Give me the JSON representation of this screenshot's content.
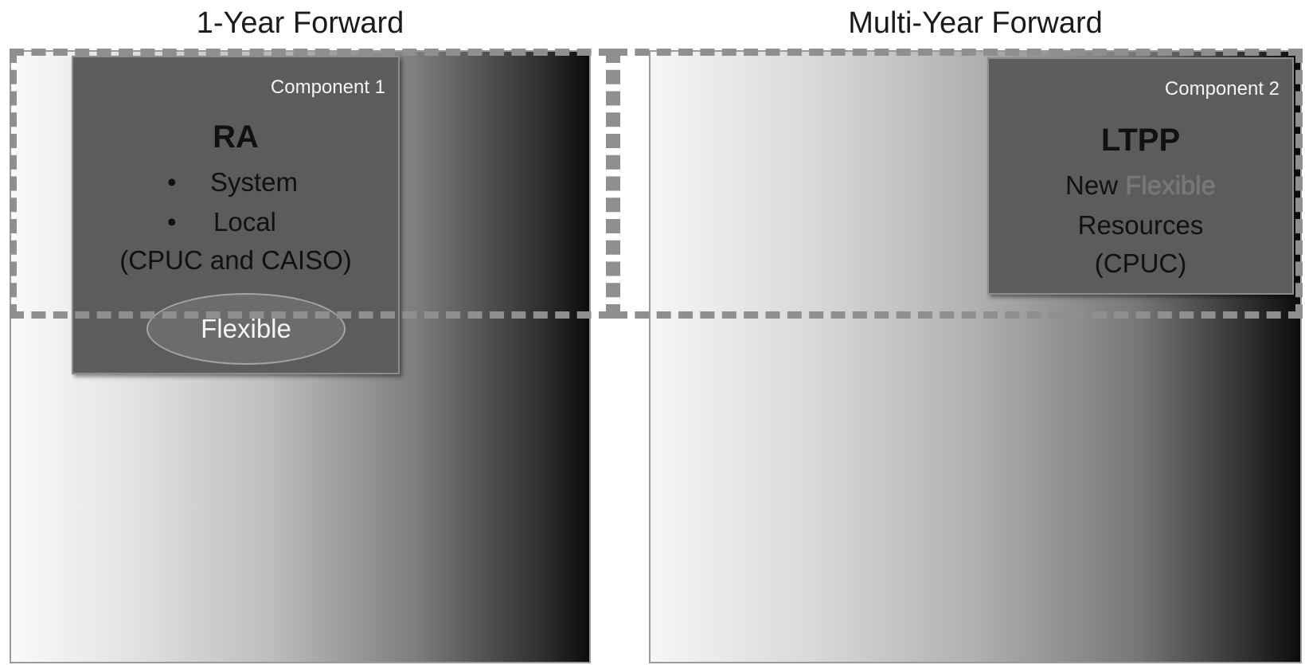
{
  "headings": {
    "left": "1-Year Forward",
    "right": "Multi-Year Forward"
  },
  "component1": {
    "label": "Component 1",
    "title": "RA",
    "bullets": [
      "System",
      "Local"
    ],
    "bullet_symbol": "•",
    "note": "(CPUC and CAISO)",
    "oval": "Flexible"
  },
  "component2": {
    "label": "Component 2",
    "title": "LTPP",
    "line1_word1": "New",
    "line1_word2": "Flexible",
    "line2": "Resources",
    "line3": "(CPUC)"
  },
  "colors": {
    "component_fill": "#5c5c5c",
    "dash_border": "#8f8f8f",
    "oval_fill": "#6c6c6c"
  }
}
